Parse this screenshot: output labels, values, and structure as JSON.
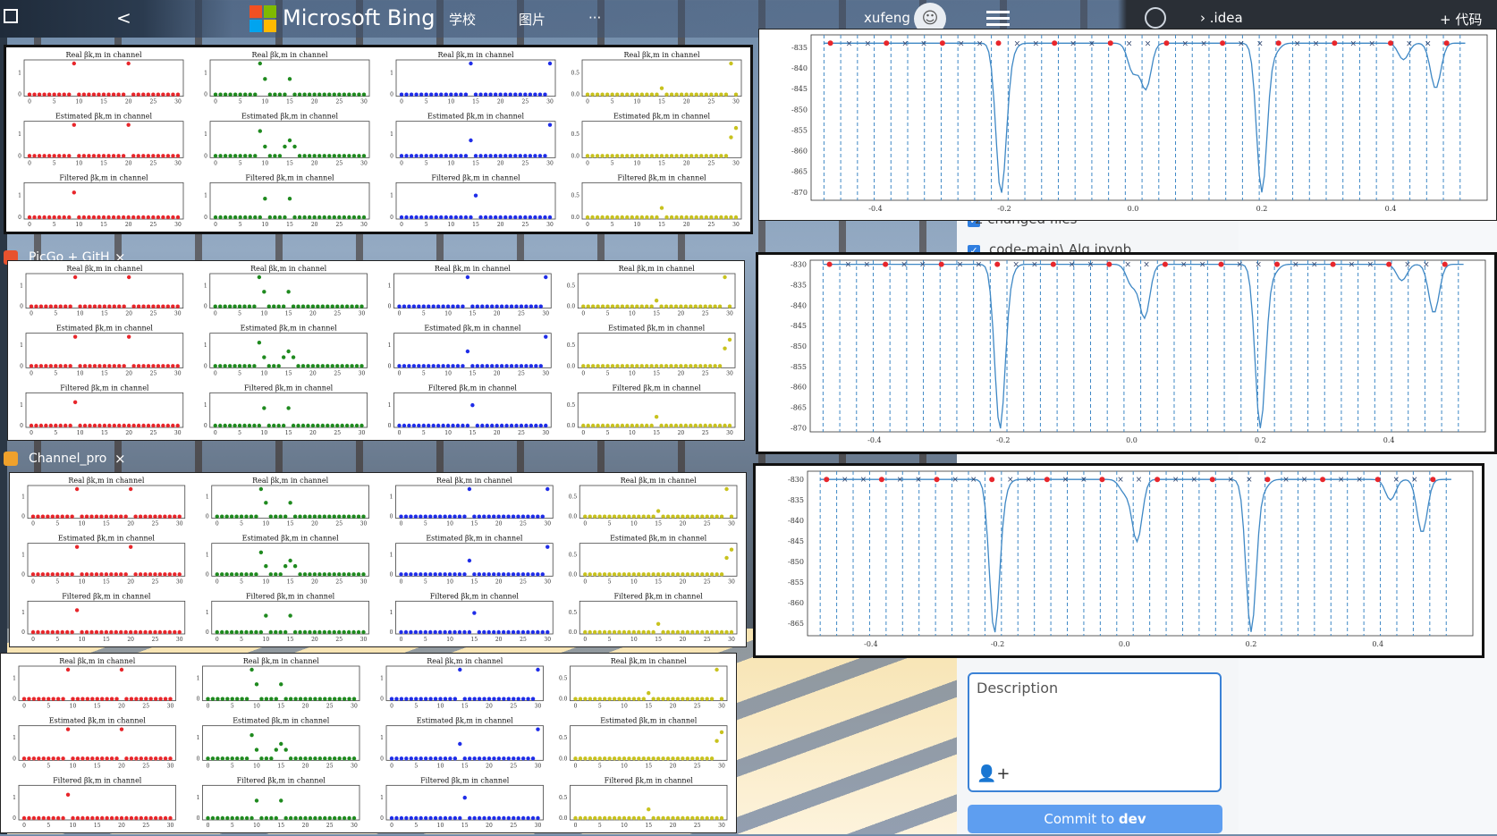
{
  "taskbar": {
    "back_glyph": "<",
    "brand": "Microsoft Bing",
    "nav": [
      "学校",
      "图片",
      "···"
    ],
    "user": "xufeng",
    "idea_label": ".idea",
    "add_code_label": "+ 代码"
  },
  "tabs": [
    {
      "label": "PicGo + GitH",
      "close": "×"
    },
    {
      "label": "Channel_pro",
      "close": "×"
    }
  ],
  "github": {
    "changed_files": "2 changed files",
    "file_item": "code-main\\ Alg.ipynb",
    "description_placeholder": "Description",
    "commit_prefix": "Commit to ",
    "commit_branch": "dev"
  },
  "colors": {
    "red": "#e8262b",
    "green": "#1f8a1f",
    "blue": "#1f2de8",
    "yellow": "#c8c21e",
    "line": "#3f88c5"
  },
  "channel_grid": {
    "row_titles": [
      "Real βk,m in channel",
      "Estimated βk,m in channel",
      "Filtered βk,m in channel"
    ],
    "x_ticks": [
      "0",
      "5",
      "10",
      "15",
      "20",
      "25",
      "30"
    ],
    "y_ticks_main": [
      "0",
      "1"
    ],
    "y_ticks_yellow": [
      "0.0",
      "0.5"
    ],
    "series": {
      "real": [
        {
          "color": "red",
          "peaks": [
            [
              9,
              1.0
            ],
            [
              20,
              1.0
            ]
          ]
        },
        {
          "color": "green",
          "peaks": [
            [
              9,
              1.0
            ],
            [
              10,
              0.5
            ],
            [
              15,
              0.5
            ]
          ]
        },
        {
          "color": "blue",
          "peaks": [
            [
              14,
              1.0
            ],
            [
              30,
              1.0
            ]
          ]
        },
        {
          "color": "yellow",
          "peaks": [
            [
              15,
              0.2
            ],
            [
              29,
              1.0
            ]
          ]
        }
      ],
      "estimated": [
        {
          "color": "red",
          "peaks": [
            [
              9,
              1.0
            ],
            [
              20,
              1.0
            ]
          ]
        },
        {
          "color": "green",
          "peaks": [
            [
              9,
              0.8
            ],
            [
              10,
              0.3
            ],
            [
              14,
              0.3
            ],
            [
              15,
              0.5
            ],
            [
              16,
              0.3
            ]
          ]
        },
        {
          "color": "blue",
          "peaks": [
            [
              14,
              0.5
            ],
            [
              30,
              1.0
            ]
          ]
        },
        {
          "color": "yellow",
          "peaks": [
            [
              29,
              0.6
            ],
            [
              30,
              0.9
            ]
          ]
        }
      ],
      "filtered": [
        {
          "color": "red",
          "peaks": [
            [
              9,
              0.8
            ]
          ]
        },
        {
          "color": "green",
          "peaks": [
            [
              10,
              0.6
            ],
            [
              15,
              0.6
            ]
          ]
        },
        {
          "color": "blue",
          "peaks": [
            [
              15,
              0.7
            ]
          ]
        },
        {
          "color": "yellow",
          "peaks": [
            [
              15,
              0.3
            ]
          ]
        }
      ]
    }
  },
  "chart_data": [
    {
      "type": "line",
      "x_ticks": [
        "-0.4",
        "-0.2",
        "0.0",
        "0.2",
        "0.4"
      ],
      "xlim": [
        -0.5,
        0.55
      ],
      "ylim": [
        -872,
        -832
      ],
      "y_ticks": [
        "-835",
        "-840",
        "-845",
        "-850",
        "-855",
        "-860",
        "-865",
        "-870"
      ],
      "baseline": -834,
      "dips": [
        [
          -0.205,
          -870
        ],
        [
          -0.19,
          -836
        ],
        [
          0.0,
          -841
        ],
        [
          0.02,
          -845
        ],
        [
          0.2,
          -870
        ],
        [
          0.22,
          -836
        ],
        [
          0.42,
          -838
        ],
        [
          0.47,
          -845
        ]
      ]
    },
    {
      "type": "line",
      "x_ticks": [
        "-0.4",
        "-0.2",
        "0.0",
        "0.2",
        "0.4"
      ],
      "xlim": [
        -0.5,
        0.55
      ],
      "ylim": [
        -871,
        -829
      ],
      "y_ticks": [
        "-830",
        "-835",
        "-840",
        "-845",
        "-850",
        "-855",
        "-860",
        "-865",
        "-870"
      ],
      "baseline": -830,
      "dips": [
        [
          -0.205,
          -870
        ],
        [
          -0.19,
          -832
        ],
        [
          0.0,
          -835
        ],
        [
          0.02,
          -843
        ],
        [
          0.2,
          -870
        ],
        [
          0.22,
          -832
        ],
        [
          0.42,
          -834
        ],
        [
          0.47,
          -842
        ]
      ]
    },
    {
      "type": "line",
      "x_ticks": [
        "-0.4",
        "-0.2",
        "0.0",
        "0.2",
        "0.4"
      ],
      "xlim": [
        -0.5,
        0.55
      ],
      "ylim": [
        -868,
        -828
      ],
      "y_ticks": [
        "-830",
        "-835",
        "-840",
        "-845",
        "-850",
        "-855",
        "-860",
        "-865"
      ],
      "baseline": -830,
      "dips": [
        [
          -0.205,
          -867
        ],
        [
          -0.19,
          -832
        ],
        [
          0.0,
          -833
        ],
        [
          0.02,
          -845
        ],
        [
          0.2,
          -867
        ],
        [
          0.22,
          -832
        ],
        [
          0.42,
          -835
        ],
        [
          0.47,
          -843
        ]
      ]
    }
  ]
}
